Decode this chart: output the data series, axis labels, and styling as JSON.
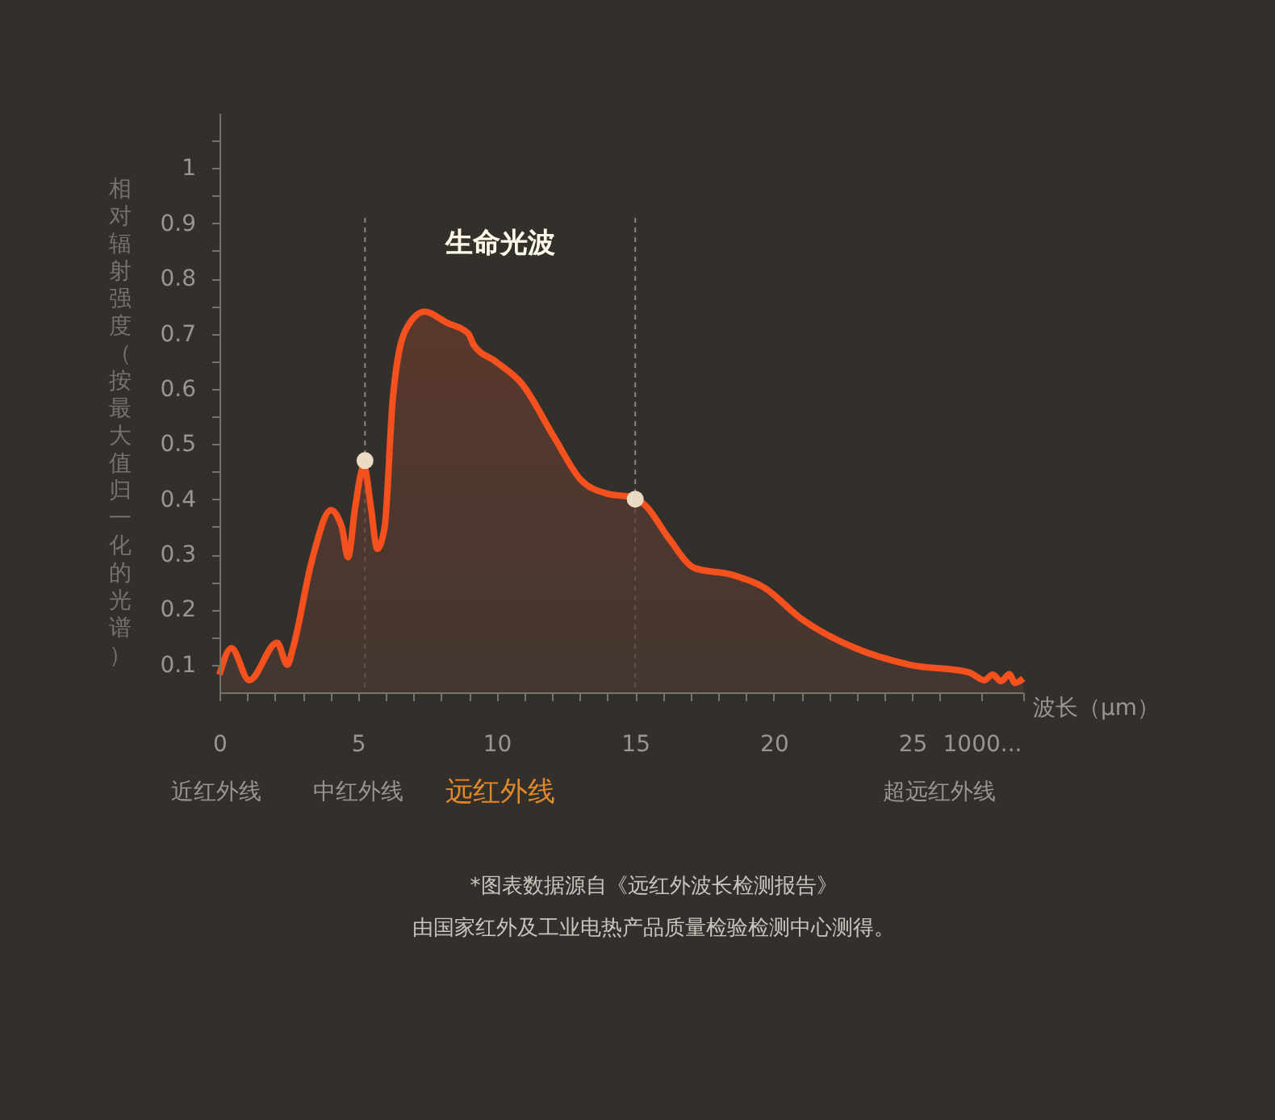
{
  "chart_data": {
    "type": "area",
    "xlabel": "波长（μm）",
    "ylabel": "相对辐射强度（按最大值归一化的光谱）",
    "series": [
      {
        "color": "#f4511e",
        "x": [
          0,
          0.43,
          1.07,
          2.08,
          2.45,
          2.65,
          3.34,
          4.02,
          4.41,
          4.64,
          4.9,
          5.21,
          5.46,
          5.69,
          5.96,
          6.25,
          6.72,
          7.4,
          8.2,
          8.98,
          9.17,
          9.95,
          10.9,
          12.1,
          13.04,
          14.0,
          14.95,
          15.4,
          16.2,
          17.15,
          18.5,
          19.65,
          21.0,
          22.95,
          24.9,
          27.05,
          27.6,
          27.9,
          28.2,
          28.5,
          28.7,
          29.0
        ],
        "values": [
          0.082,
          0.13,
          0.072,
          0.14,
          0.1,
          0.13,
          0.29,
          0.38,
          0.35,
          0.295,
          0.387,
          0.46,
          0.387,
          0.31,
          0.35,
          0.58,
          0.707,
          0.74,
          0.72,
          0.7,
          0.68,
          0.65,
          0.61,
          0.51,
          0.435,
          0.41,
          0.403,
          0.387,
          0.33,
          0.275,
          0.263,
          0.24,
          0.183,
          0.13,
          0.1,
          0.086,
          0.072,
          0.082,
          0.07,
          0.083,
          0.067,
          0.075
        ]
      },
      {
        "type": "scatter",
        "color": "#eadcc4",
        "x": [
          5.25,
          15
        ],
        "values": [
          0.47,
          0.4
        ]
      }
    ],
    "xlim": [
      0,
      29
    ],
    "xticks": [
      0,
      {
        "value": 1,
        "label": null
      },
      {
        "value": 2,
        "label": null
      },
      {
        "value": 3,
        "label": null
      },
      {
        "value": 4,
        "label": null
      },
      5,
      {
        "value": 6,
        "label": null
      },
      {
        "value": 7,
        "label": null
      },
      {
        "value": 8,
        "label": null
      },
      {
        "value": 9,
        "label": null
      },
      10,
      {
        "value": 11,
        "label": null
      },
      {
        "value": 12,
        "label": null
      },
      {
        "value": 13,
        "label": null
      },
      {
        "value": 14,
        "label": null
      },
      15,
      {
        "value": 16,
        "label": null
      },
      {
        "value": 17,
        "label": null
      },
      {
        "value": 18,
        "label": null
      },
      {
        "value": 19,
        "label": null
      },
      20,
      {
        "value": 21,
        "label": null
      },
      {
        "value": 22,
        "label": null
      },
      {
        "value": 23,
        "label": null
      },
      {
        "value": 24,
        "label": null
      },
      25,
      {
        "value": 26,
        "label": null
      },
      {
        "value": 27.5,
        "label": "1000..."
      },
      {
        "value": 29,
        "label": null
      }
    ],
    "ylim": [
      0.05,
      1.1
    ],
    "yticks": [
      0.1,
      {
        "value": 0.15,
        "label": null
      },
      0.2,
      {
        "value": 0.25,
        "label": null
      },
      0.3,
      {
        "value": 0.35,
        "label": null
      },
      0.4,
      {
        "value": 0.45,
        "label": null
      },
      0.5,
      {
        "value": 0.55,
        "label": null
      },
      0.6,
      {
        "value": 0.65,
        "label": null
      },
      0.7,
      {
        "value": 0.75,
        "label": null
      },
      0.8,
      {
        "value": 0.85,
        "label": null
      },
      0.9,
      {
        "value": 0.95,
        "label": null
      },
      1,
      {
        "value": 1.05,
        "label": null
      }
    ],
    "ref_lines": [
      {
        "axis": "x",
        "value": 5.25,
        "color": "#8a857f",
        "line_style": "dashed"
      },
      {
        "axis": "x",
        "value": 15,
        "color": "#8a857f",
        "line_style": "dashed"
      }
    ],
    "annotations": [
      "近红外线",
      "中红外线",
      "远红外线",
      "超远红外线",
      "生命光波",
      "*图表数据源自《远红外波长检测报告》",
      "由国家红外及工业电热产品质量检验检测中心测得。"
    ],
    "grid": false
  }
}
